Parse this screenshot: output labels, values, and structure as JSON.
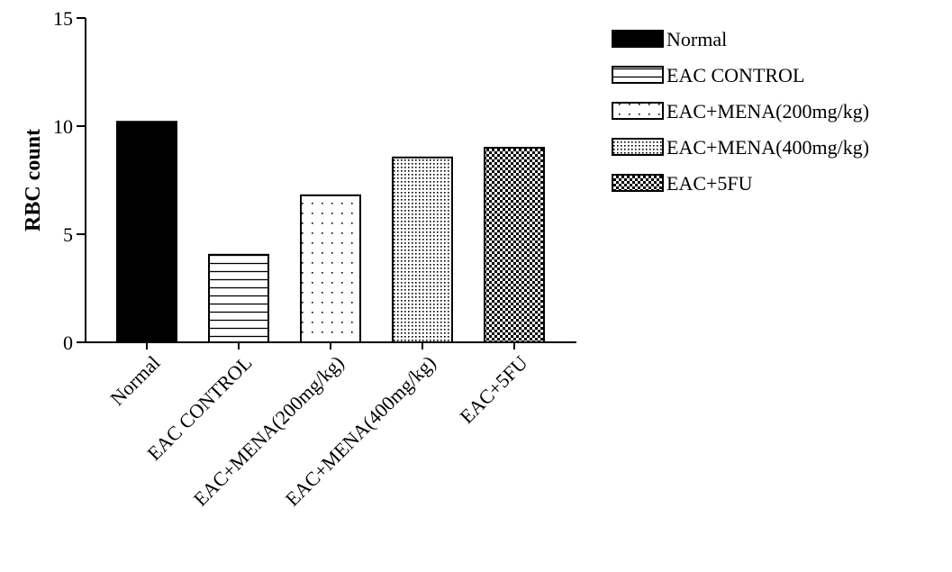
{
  "chart_data": {
    "type": "bar",
    "title": "",
    "xlabel": "",
    "ylabel": "RBC count",
    "ylim": [
      0,
      15
    ],
    "yticks": [
      0,
      5,
      10,
      15
    ],
    "grid": false,
    "legend_position": "top-right",
    "categories": [
      "Normal",
      "EAC CONTROL",
      "EAC+MENA(200mg/kg)",
      "EAC+MENA(400mg/kg)",
      "EAC+5FU"
    ],
    "values": [
      10.2,
      4.05,
      6.8,
      8.55,
      9.0
    ],
    "patterns": [
      "solid-black",
      "horizontal-lines",
      "sparse-dots",
      "dense-dots",
      "checkerboard"
    ],
    "legend": [
      "Normal",
      "EAC CONTROL",
      "EAC+MENA(200mg/kg)",
      "EAC+MENA(400mg/kg)",
      "EAC+5FU"
    ]
  }
}
